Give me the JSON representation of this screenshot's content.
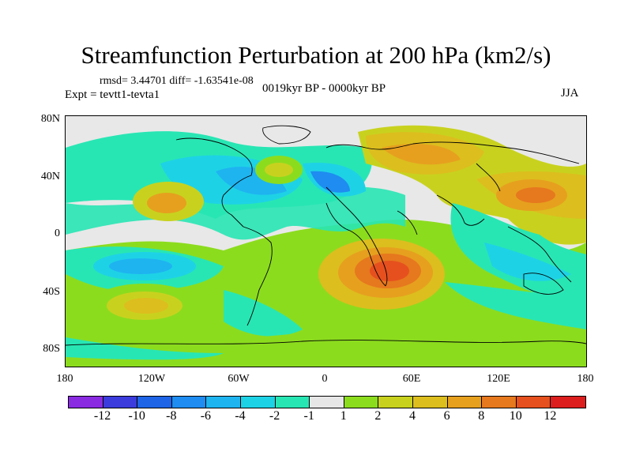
{
  "title": "Streamfunction Perturbation at 200 hPa (km2/s)",
  "stats": "rmsd= 3.44701 diff= -1.63541e-08",
  "experiment": "Expt = tevtt1-tevta1",
  "period": "0019kyr BP - 0000kyr BP",
  "season": "JJA",
  "latitude_labels": [
    "80N",
    "40N",
    "0",
    "40S",
    "80S"
  ],
  "longitude_labels": [
    "180",
    "120W",
    "60W",
    "0",
    "60E",
    "120E",
    "180"
  ],
  "colorbar": {
    "colors": [
      "#8a2be2",
      "#3c3cdc",
      "#1e64e6",
      "#1e8cf0",
      "#1eb4f0",
      "#1ed2e6",
      "#28e6b4",
      "#e6e6e6",
      "#8cdc1e",
      "#c8d21e",
      "#dcbe1e",
      "#e6a01e",
      "#e6781e",
      "#e6501e",
      "#dc1e1e"
    ],
    "labels": [
      "-12",
      "-10",
      "-8",
      "-6",
      "-4",
      "-2",
      "-1",
      "1",
      "2",
      "4",
      "6",
      "8",
      "10",
      "12"
    ]
  }
}
